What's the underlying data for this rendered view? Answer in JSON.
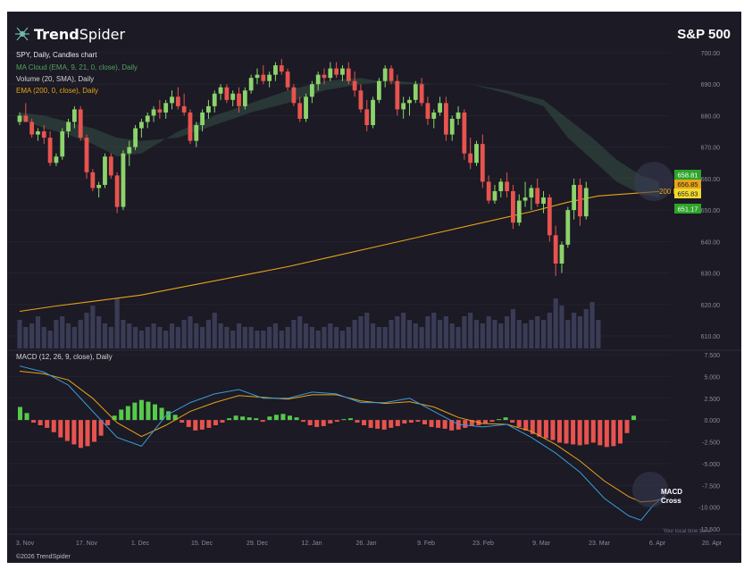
{
  "brand": {
    "name_light": "Trend",
    "name_bold": "Spider",
    "copyright": "©2026 TrendSpider"
  },
  "header": {
    "title": "S&P 500"
  },
  "legend": {
    "symbol": "SPY, Daily, Candles chart",
    "ma_cloud": "MA Cloud (EMA, 9, 21, 0, close), Daily",
    "volume": "Volume (20, SMA), Daily",
    "ema": "EMA (200, 0, close), Daily",
    "macd": "MACD (12, 26, 9, close), Daily"
  },
  "annotations": {
    "ema_label": "200 EMA",
    "macd_cross_line1": "MACD",
    "macd_cross_line2": "Cross",
    "timezone": "Your local time zone"
  },
  "price_tags": [
    "658.81",
    "656.85",
    "655.83",
    "651.17"
  ],
  "colors": {
    "background": "#1b1a25",
    "up": "#8cd36b",
    "down": "#e8534e",
    "ema": "#e8a317",
    "macd_line": "#3b9bd8",
    "signal_line": "#e8a317",
    "cloud": "#3c5a4c",
    "volume": "#3a3b55",
    "tag_green": "#2ea52a",
    "tag_orange": "#e8a317",
    "tag_yellow": "#f1d92e",
    "tag_lightgreen": "#6fdc63"
  },
  "chart_data": [
    {
      "type": "candlestick",
      "title": "S&P 500",
      "subtitle": "SPY, Daily, Candles chart",
      "x_ticks": [
        "3. Nov",
        "17. Nov",
        "1. Dec",
        "15. Dec",
        "29. Dec",
        "12. Jan",
        "26. Jan",
        "9. Feb",
        "23. Feb",
        "9. Mar",
        "23. Mar",
        "6. Apr",
        "20. Apr"
      ],
      "y_ticks": [
        "700.00",
        "690.00",
        "680.00",
        "670.00",
        "660.00",
        "650.00",
        "640.00",
        "630.00",
        "620.00",
        "610.00"
      ],
      "ylim": [
        607,
        702
      ],
      "candles": [
        [
          678,
          681,
          677,
          680
        ],
        [
          680,
          684,
          678,
          678
        ],
        [
          678,
          679,
          673,
          674
        ],
        [
          674,
          676,
          672,
          675
        ],
        [
          675,
          677,
          671,
          673
        ],
        [
          673,
          675,
          664,
          665
        ],
        [
          665,
          668,
          664,
          667
        ],
        [
          667,
          676,
          666,
          675
        ],
        [
          675,
          679,
          673,
          678
        ],
        [
          678,
          683,
          676,
          682
        ],
        [
          682,
          683,
          672,
          673
        ],
        [
          673,
          674,
          660,
          662
        ],
        [
          662,
          663,
          656,
          657
        ],
        [
          657,
          659,
          654,
          658
        ],
        [
          658,
          668,
          657,
          667
        ],
        [
          667,
          668,
          660,
          661
        ],
        [
          661,
          662,
          649,
          651
        ],
        [
          651,
          669,
          650,
          668
        ],
        [
          668,
          672,
          664,
          670
        ],
        [
          670,
          677,
          669,
          676
        ],
        [
          676,
          679,
          673,
          678
        ],
        [
          678,
          681,
          676,
          680
        ],
        [
          680,
          683,
          678,
          682
        ],
        [
          682,
          685,
          679,
          681
        ],
        [
          681,
          685,
          679,
          684
        ],
        [
          684,
          688,
          682,
          686
        ],
        [
          686,
          689,
          682,
          683
        ],
        [
          683,
          687,
          680,
          681
        ],
        [
          681,
          682,
          671,
          672
        ],
        [
          672,
          678,
          670,
          677
        ],
        [
          677,
          682,
          675,
          681
        ],
        [
          681,
          685,
          679,
          683
        ],
        [
          683,
          688,
          681,
          687
        ],
        [
          687,
          690,
          685,
          689
        ],
        [
          689,
          690,
          684,
          685
        ],
        [
          685,
          688,
          683,
          687
        ],
        [
          687,
          689,
          681,
          683
        ],
        [
          683,
          689,
          682,
          688
        ],
        [
          688,
          693,
          687,
          692
        ],
        [
          692,
          695,
          690,
          693
        ],
        [
          693,
          696,
          690,
          691
        ],
        [
          691,
          694,
          689,
          693
        ],
        [
          693,
          697,
          691,
          696
        ],
        [
          696,
          698,
          693,
          694
        ],
        [
          694,
          695,
          688,
          689
        ],
        [
          689,
          690,
          683,
          684
        ],
        [
          684,
          686,
          678,
          679
        ],
        [
          679,
          687,
          678,
          686
        ],
        [
          686,
          691,
          684,
          690
        ],
        [
          690,
          694,
          688,
          693
        ],
        [
          693,
          695,
          690,
          692
        ],
        [
          692,
          697,
          691,
          695
        ],
        [
          695,
          697,
          692,
          693
        ],
        [
          693,
          696,
          691,
          695
        ],
        [
          695,
          697,
          690,
          691
        ],
        [
          691,
          694,
          686,
          688
        ],
        [
          688,
          690,
          681,
          682
        ],
        [
          682,
          685,
          675,
          677
        ],
        [
          677,
          686,
          676,
          685
        ],
        [
          685,
          692,
          684,
          691
        ],
        [
          691,
          696,
          689,
          695
        ],
        [
          695,
          696,
          690,
          691
        ],
        [
          691,
          693,
          680,
          682
        ],
        [
          682,
          686,
          679,
          684
        ],
        [
          684,
          686,
          680,
          685
        ],
        [
          685,
          691,
          684,
          690
        ],
        [
          690,
          692,
          683,
          684
        ],
        [
          684,
          686,
          677,
          679
        ],
        [
          679,
          682,
          676,
          681
        ],
        [
          681,
          686,
          680,
          684
        ],
        [
          684,
          686,
          672,
          674
        ],
        [
          674,
          680,
          672,
          679
        ],
        [
          679,
          683,
          677,
          681
        ],
        [
          681,
          682,
          666,
          668
        ],
        [
          668,
          673,
          663,
          665
        ],
        [
          665,
          672,
          664,
          671
        ],
        [
          671,
          674,
          657,
          659
        ],
        [
          659,
          661,
          652,
          653
        ],
        [
          653,
          658,
          652,
          656
        ],
        [
          656,
          660,
          654,
          659
        ],
        [
          659,
          662,
          654,
          656
        ],
        [
          656,
          658,
          644,
          646
        ],
        [
          646,
          655,
          645,
          653
        ],
        [
          653,
          659,
          651,
          654
        ],
        [
          654,
          658,
          650,
          657
        ],
        [
          657,
          660,
          651,
          652
        ],
        [
          652,
          656,
          649,
          654
        ],
        [
          654,
          655,
          640,
          642
        ],
        [
          642,
          645,
          629,
          633
        ],
        [
          633,
          640,
          630,
          639
        ],
        [
          639,
          651,
          638,
          650
        ],
        [
          650,
          660,
          647,
          658
        ],
        [
          658,
          660,
          645,
          648
        ],
        [
          648,
          659,
          647,
          657
        ]
      ],
      "ema200": [
        [
          0,
          617.8
        ],
        [
          6,
          619.5
        ],
        [
          12,
          621.0
        ],
        [
          20,
          623.0
        ],
        [
          28,
          626.0
        ],
        [
          36,
          629.0
        ],
        [
          44,
          632.0
        ],
        [
          52,
          635.5
        ],
        [
          60,
          639.0
        ],
        [
          68,
          642.5
        ],
        [
          76,
          646.0
        ],
        [
          84,
          649.5
        ],
        [
          90,
          652.5
        ],
        [
          95,
          654.5
        ],
        [
          100,
          655.2
        ],
        [
          105,
          655.9
        ]
      ],
      "ma_cloud_fast": [
        [
          0,
          679
        ],
        [
          4,
          676
        ],
        [
          8,
          674
        ],
        [
          12,
          671
        ],
        [
          16,
          667
        ],
        [
          20,
          668
        ],
        [
          26,
          675
        ],
        [
          32,
          680
        ],
        [
          38,
          684
        ],
        [
          44,
          688
        ],
        [
          50,
          691
        ],
        [
          56,
          692
        ],
        [
          62,
          690
        ],
        [
          68,
          690
        ],
        [
          74,
          690
        ],
        [
          80,
          687
        ],
        [
          86,
          683
        ],
        [
          90,
          673
        ],
        [
          94,
          666
        ],
        [
          98,
          659
        ],
        [
          102,
          655
        ],
        [
          105,
          654
        ]
      ],
      "ma_cloud_slow": [
        [
          0,
          681
        ],
        [
          4,
          680
        ],
        [
          8,
          678
        ],
        [
          12,
          676
        ],
        [
          16,
          673
        ],
        [
          20,
          672
        ],
        [
          26,
          673
        ],
        [
          32,
          677
        ],
        [
          38,
          681
        ],
        [
          44,
          684
        ],
        [
          50,
          688
        ],
        [
          56,
          690
        ],
        [
          62,
          691
        ],
        [
          68,
          690
        ],
        [
          74,
          690
        ],
        [
          80,
          688
        ],
        [
          86,
          685
        ],
        [
          90,
          679
        ],
        [
          94,
          673
        ],
        [
          98,
          666
        ],
        [
          102,
          661
        ],
        [
          105,
          659
        ]
      ],
      "volume": [
        8,
        6,
        7,
        9,
        6,
        5,
        8,
        9,
        7,
        6,
        8,
        10,
        12,
        9,
        7,
        6,
        14,
        8,
        7,
        6,
        5,
        6,
        7,
        6,
        5,
        7,
        6,
        8,
        9,
        7,
        6,
        8,
        10,
        7,
        6,
        5,
        7,
        6,
        6,
        5,
        5,
        6,
        7,
        5,
        6,
        8,
        9,
        7,
        6,
        5,
        6,
        7,
        6,
        5,
        6,
        8,
        9,
        10,
        7,
        6,
        6,
        8,
        9,
        10,
        8,
        7,
        6,
        9,
        10,
        8,
        9,
        7,
        6,
        9,
        10,
        8,
        7,
        9,
        8,
        7,
        9,
        11,
        8,
        7,
        8,
        9,
        8,
        10,
        14,
        12,
        8,
        10,
        9,
        11,
        13,
        8
      ]
    },
    {
      "type": "line",
      "title": "MACD (12, 26, 9, close), Daily",
      "y_ticks": [
        "7.500",
        "5.000",
        "2.500",
        "0.000",
        "-2.500",
        "-5.000",
        "-7.500",
        "-10.000",
        "-12.500"
      ],
      "ylim": [
        -12.5,
        7.5
      ],
      "macd": [
        [
          0,
          6.2
        ],
        [
          4,
          5.5
        ],
        [
          8,
          4.0
        ],
        [
          12,
          1.0
        ],
        [
          16,
          -2.0
        ],
        [
          20,
          -3.0
        ],
        [
          24,
          0.5
        ],
        [
          28,
          2.0
        ],
        [
          32,
          3.0
        ],
        [
          36,
          3.5
        ],
        [
          40,
          2.5
        ],
        [
          44,
          2.5
        ],
        [
          48,
          3.2
        ],
        [
          52,
          3.0
        ],
        [
          56,
          2.0
        ],
        [
          60,
          2.0
        ],
        [
          64,
          2.5
        ],
        [
          68,
          1.0
        ],
        [
          72,
          -0.5
        ],
        [
          76,
          -0.8
        ],
        [
          80,
          -0.5
        ],
        [
          84,
          -2.0
        ],
        [
          88,
          -3.8
        ],
        [
          92,
          -6.0
        ],
        [
          96,
          -9.0
        ],
        [
          100,
          -11.0
        ],
        [
          102,
          -11.5
        ],
        [
          104,
          -9.8
        ],
        [
          106,
          -8.6
        ]
      ],
      "signal": [
        [
          0,
          5.6
        ],
        [
          4,
          5.3
        ],
        [
          8,
          4.6
        ],
        [
          12,
          2.5
        ],
        [
          16,
          -0.3
        ],
        [
          20,
          -1.9
        ],
        [
          24,
          -0.6
        ],
        [
          28,
          1.0
        ],
        [
          32,
          2.0
        ],
        [
          36,
          2.8
        ],
        [
          40,
          2.6
        ],
        [
          44,
          2.4
        ],
        [
          48,
          2.9
        ],
        [
          52,
          2.9
        ],
        [
          56,
          2.2
        ],
        [
          60,
          1.9
        ],
        [
          64,
          2.1
        ],
        [
          68,
          1.5
        ],
        [
          72,
          0.3
        ],
        [
          76,
          -0.4
        ],
        [
          80,
          -0.5
        ],
        [
          84,
          -1.3
        ],
        [
          88,
          -2.8
        ],
        [
          92,
          -4.7
        ],
        [
          96,
          -7.0
        ],
        [
          100,
          -8.8
        ],
        [
          102,
          -9.4
        ],
        [
          104,
          -9.3
        ],
        [
          106,
          -9.0
        ]
      ],
      "histogram": [
        1.5,
        0.8,
        -0.3,
        -0.6,
        -0.9,
        -1.4,
        -2.0,
        -2.4,
        -2.8,
        -3.2,
        -3.0,
        -2.5,
        -1.8,
        -0.6,
        0.5,
        1.2,
        1.6,
        2.0,
        2.3,
        2.1,
        1.8,
        1.4,
        1.0,
        0.6,
        -0.3,
        -0.8,
        -1.2,
        -1.1,
        -0.9,
        -0.6,
        -0.3,
        0.2,
        0.5,
        0.4,
        0.3,
        0.2,
        -0.2,
        0.4,
        0.6,
        0.7,
        0.5,
        0.3,
        -0.2,
        -0.6,
        -0.8,
        -0.7,
        -0.4,
        -0.2,
        0.1,
        0.2,
        -0.3,
        -0.6,
        -0.9,
        -1.0,
        -1.1,
        -0.9,
        -0.7,
        -0.4,
        -0.3,
        -0.2,
        -0.5,
        -0.8,
        -0.9,
        -1.0,
        -1.2,
        -1.1,
        -0.9,
        -0.7,
        -0.6,
        -0.4,
        -0.2,
        0.1,
        0.3,
        -0.3,
        -0.8,
        -1.2,
        -1.6,
        -1.9,
        -2.1,
        -2.3,
        -2.6,
        -2.7,
        -2.8,
        -2.9,
        -2.8,
        -2.6,
        -2.9,
        -3.1,
        -3.0,
        -2.7,
        -1.5,
        0.5
      ]
    }
  ]
}
